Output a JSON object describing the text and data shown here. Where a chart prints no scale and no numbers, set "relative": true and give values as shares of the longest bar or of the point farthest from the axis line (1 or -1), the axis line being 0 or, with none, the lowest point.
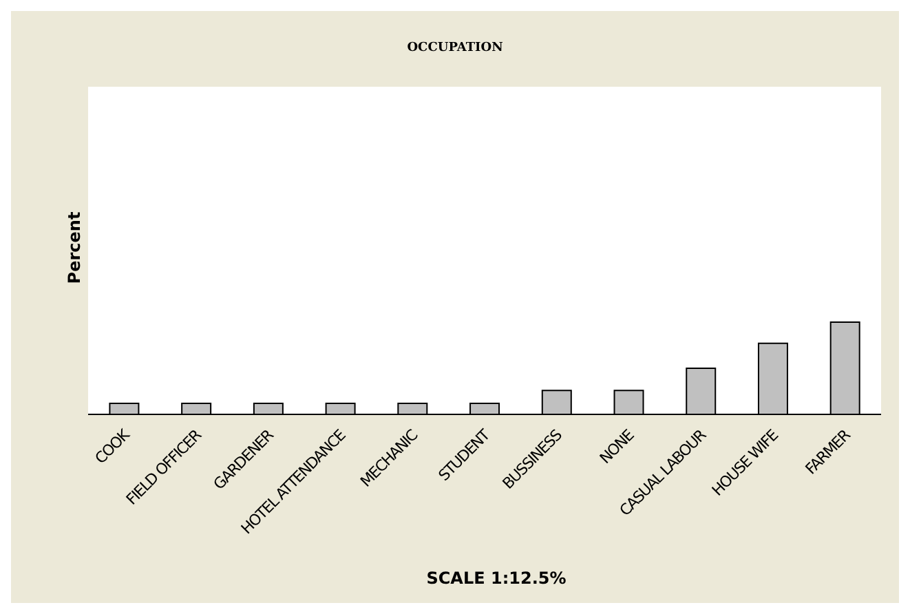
{
  "chart_data": {
    "type": "bar",
    "title": "OCCUPATION",
    "ylabel": "Percent",
    "annotations": [
      "SCALE 1:12.5%"
    ],
    "relative": true,
    "categories": [
      "COOK",
      "FIELD OFFICER",
      "GARDENER",
      "HOTEL ATTENDANCE",
      "MECHANIC",
      "STUDENT",
      "BUSSINESS",
      "NONE",
      "CASUAL LABOUR",
      "HOUSE WIFE",
      "FARMER"
    ],
    "values": [
      0.12,
      0.12,
      0.12,
      0.12,
      0.12,
      0.12,
      0.26,
      0.26,
      0.5,
      0.77,
      1
    ],
    "color": "#c0c0c0"
  }
}
